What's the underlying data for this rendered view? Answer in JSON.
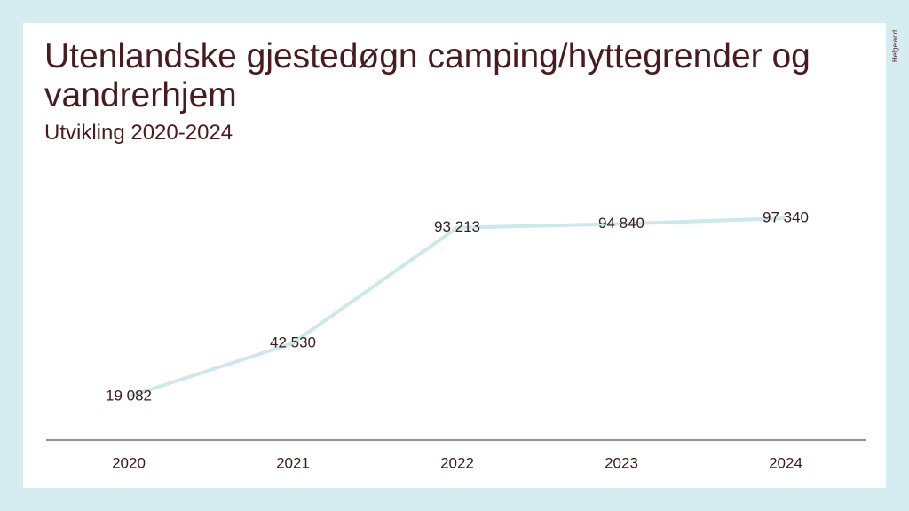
{
  "chart_data": {
    "type": "line",
    "title": "Utenlandske gjestedøgn camping/hyttegrender og vandrerhjem",
    "subtitle": "Utvikling 2020-2024",
    "categories": [
      "2020",
      "2021",
      "2022",
      "2023",
      "2024"
    ],
    "values": [
      19082,
      42530,
      93213,
      94840,
      97340
    ],
    "value_labels": [
      "19 082",
      "42 530",
      "93 213",
      "94 840",
      "97 340"
    ],
    "color": "#cde8eb",
    "logo": "Helgeland"
  }
}
